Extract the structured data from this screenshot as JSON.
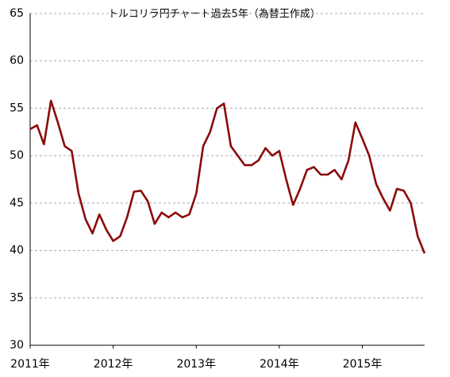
{
  "chart_data": {
    "type": "line",
    "title": "トルコリラ円チャート過去5年（為替王作成）",
    "categories": [
      "2011年",
      null,
      null,
      null,
      null,
      null,
      null,
      null,
      null,
      null,
      null,
      null,
      "2012年",
      null,
      null,
      null,
      null,
      null,
      null,
      null,
      null,
      null,
      null,
      null,
      "2013年",
      null,
      null,
      null,
      null,
      null,
      null,
      null,
      null,
      null,
      null,
      null,
      "2014年",
      null,
      null,
      null,
      null,
      null,
      null,
      null,
      null,
      null,
      null,
      null,
      "2015年",
      null,
      null,
      null,
      null,
      null,
      null,
      null,
      null,
      null
    ],
    "series": [
      {
        "name": "TRY/JPY",
        "color": "#8b0a0a",
        "values": [
          52.8,
          53.2,
          51.2,
          55.8,
          53.5,
          51,
          50.5,
          46,
          43.3,
          41.8,
          43.8,
          42.2,
          41.0,
          41.5,
          43.5,
          46.2,
          46.3,
          45.2,
          42.8,
          44,
          43.5,
          44,
          43.5,
          43.8,
          46,
          51,
          52.5,
          55,
          55.5,
          51,
          50,
          49,
          49,
          49.5,
          50.8,
          50,
          50.5,
          47.5,
          44.8,
          46.5,
          48.5,
          48.8,
          48,
          48,
          48.5,
          47.5,
          49.5,
          53.5,
          51.8,
          50,
          47,
          45.5,
          44.2,
          46.5,
          46.3,
          45,
          41.5,
          39.7
        ]
      }
    ],
    "ylim": [
      30,
      65
    ],
    "yticks": [
      30,
      35,
      40,
      45,
      50,
      55,
      60,
      65
    ],
    "grid": true
  }
}
